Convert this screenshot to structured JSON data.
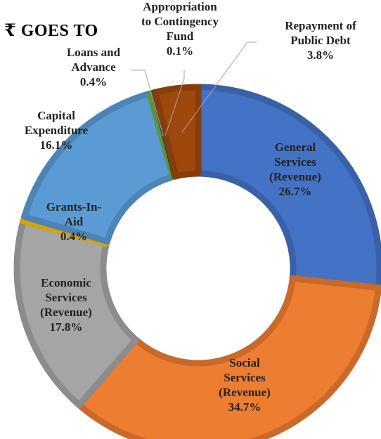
{
  "title": "₹ GOES TO",
  "chart_data": {
    "type": "donut",
    "categories": [
      "General Services (Revenue)",
      "Social Services (Revenue)",
      "Economic Services (Revenue)",
      "Grants-In-Aid",
      "Capital Expenditure",
      "Loans and Advance",
      "Appropriation to Contingency Fund",
      "Repayment of Public Debt"
    ],
    "values": [
      26.7,
      34.7,
      17.8,
      0.4,
      16.1,
      0.4,
      0.1,
      3.8
    ],
    "unit": "%",
    "colors": [
      "#4472C4",
      "#ED7D31",
      "#A5A5A5",
      "#FFC000",
      "#5B9BD5",
      "#70AD47",
      "#264478",
      "#9E480E"
    ],
    "slices": [
      {
        "name": "General Services (Revenue)",
        "lines": [
          "General",
          "Services",
          "(Revenue)",
          "26.7%"
        ]
      },
      {
        "name": "Social Services (Revenue)",
        "lines": [
          "Social",
          "Services",
          "(Revenue)",
          "34.7%"
        ]
      },
      {
        "name": "Economic Services (Revenue)",
        "lines": [
          "Economic",
          "Services",
          "(Revenue)",
          "17.8%"
        ]
      },
      {
        "name": "Grants-In-Aid",
        "lines": [
          "Grants-In-",
          "Aid",
          "0.4%"
        ]
      },
      {
        "name": "Capital Expenditure",
        "lines": [
          "Capital",
          "Expenditure",
          "16.1%"
        ]
      },
      {
        "name": "Loans and Advance",
        "lines": [
          "Loans and",
          "Advance",
          "0.4%"
        ]
      },
      {
        "name": "Appropriation to Contingency Fund",
        "lines": [
          "Appropriation",
          "to Contingency",
          "Fund",
          "0.1%"
        ]
      },
      {
        "name": "Repayment of Public Debt",
        "lines": [
          "Repayment of",
          "Public Debt",
          "3.8%"
        ]
      }
    ]
  }
}
